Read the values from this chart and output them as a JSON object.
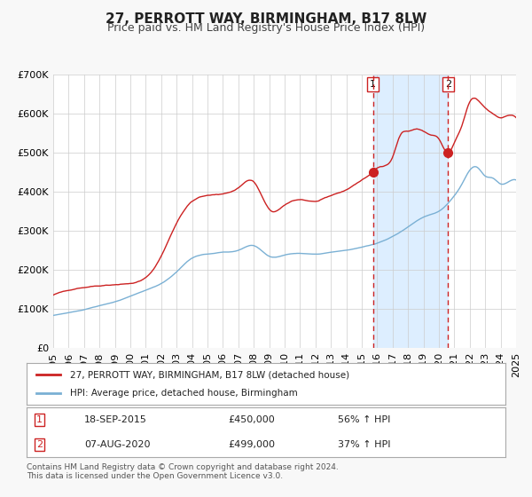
{
  "title": "27, PERROTT WAY, BIRMINGHAM, B17 8LW",
  "subtitle": "Price paid vs. HM Land Registry's House Price Index (HPI)",
  "footer1": "Contains HM Land Registry data © Crown copyright and database right 2024.",
  "footer2": "This data is licensed under the Open Government Licence v3.0.",
  "legend_line1": "27, PERROTT WAY, BIRMINGHAM, B17 8LW (detached house)",
  "legend_line2": "HPI: Average price, detached house, Birmingham",
  "annotation1_label": "1",
  "annotation1_date": "18-SEP-2015",
  "annotation1_price": "£450,000",
  "annotation1_pct": "56% ↑ HPI",
  "annotation2_label": "2",
  "annotation2_date": "07-AUG-2020",
  "annotation2_price": "£499,000",
  "annotation2_pct": "37% ↑ HPI",
  "marker1_x": 2015.72,
  "marker1_y": 450000,
  "marker2_x": 2020.6,
  "marker2_y": 499000,
  "vline1_x": 2015.72,
  "vline2_x": 2020.6,
  "shade_start": 2015.72,
  "shade_end": 2020.6,
  "ylim": [
    0,
    700000
  ],
  "xlim": [
    1995,
    2025
  ],
  "yticks": [
    0,
    100000,
    200000,
    300000,
    400000,
    500000,
    600000,
    700000
  ],
  "ytick_labels": [
    "£0",
    "£100K",
    "£200K",
    "£300K",
    "£400K",
    "£500K",
    "£600K",
    "£700K"
  ],
  "line1_color": "#cc2222",
  "line2_color": "#7ab0d4",
  "background_color": "#f8f8f8",
  "plot_bg_color": "#ffffff",
  "shade_color": "#ddeeff",
  "grid_color": "#cccccc",
  "title_fontsize": 11,
  "subtitle_fontsize": 9,
  "tick_fontsize": 8
}
